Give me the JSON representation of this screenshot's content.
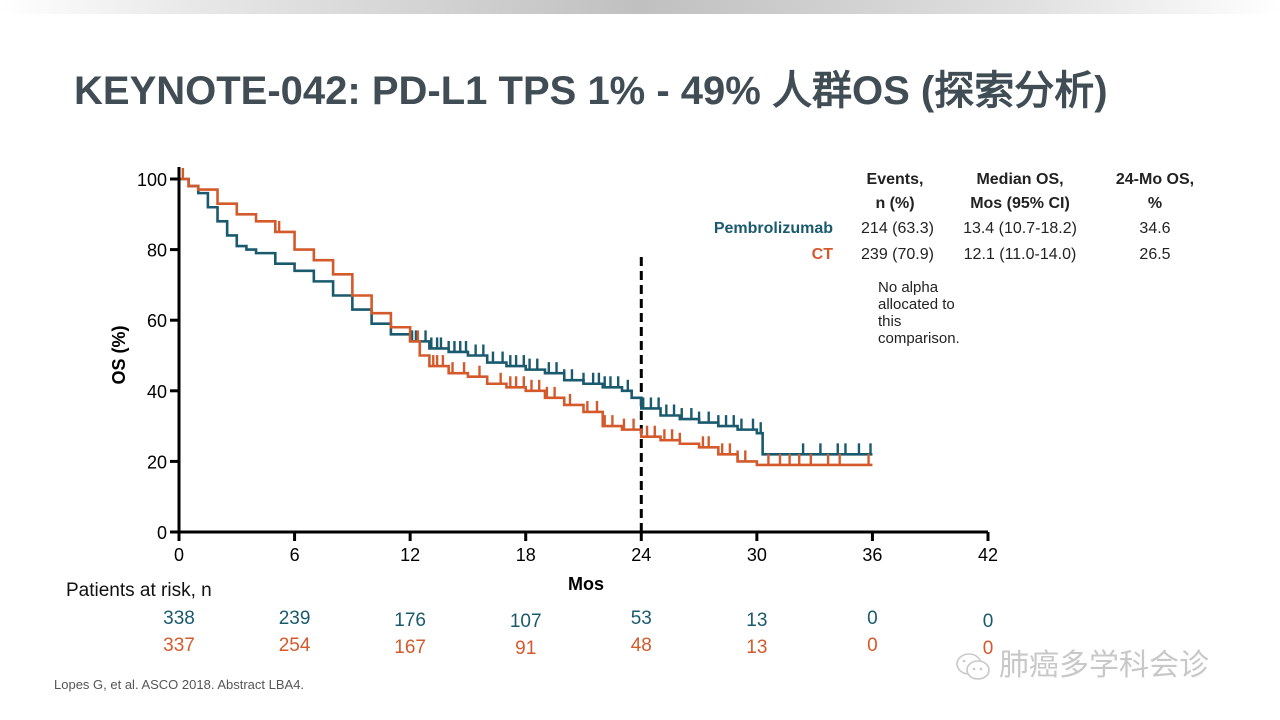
{
  "slide": {
    "title": "KEYNOTE-042: PD-L1 TPS 1% - 49% 人群OS  (探索分析)",
    "footer": "Lopes G, et al. ASCO 2018. Abstract LBA4.",
    "watermark": "肺癌多学科会诊",
    "watermark_icon": "wechat-icon"
  },
  "colors": {
    "pembrolizumab": "#1a5a6e",
    "ct": "#d45a2c",
    "title": "#404d55"
  },
  "summary_table": {
    "headers": [
      [
        "Events,",
        "n (%)"
      ],
      [
        "Median OS,",
        "Mos (95% CI)"
      ],
      [
        "24-Mo OS,",
        "%"
      ]
    ],
    "rows": [
      {
        "arm": "Pembrolizumab",
        "events": "214 (63.3)",
        "median_os": "13.4 (10.7-18.2)",
        "os24": "34.6"
      },
      {
        "arm": "CT",
        "events": "239 (70.9)",
        "median_os": "12.1 (11.0-14.0)",
        "os24": "26.5"
      }
    ],
    "note": "No alpha allocated to this comparison."
  },
  "risk_table": {
    "title": "Patients at risk, n",
    "months": [
      0,
      6,
      12,
      18,
      24,
      30,
      36,
      42
    ],
    "pembrolizumab": [
      "338",
      "239",
      "176",
      "107",
      "53",
      "13",
      "0",
      "0"
    ],
    "ct": [
      "337",
      "254",
      "167",
      "91",
      "48",
      "13",
      "0",
      "0"
    ]
  },
  "chart_data": {
    "type": "line",
    "title": "",
    "xlabel": "Mos",
    "ylabel": "OS (%)",
    "xlim": [
      0,
      42
    ],
    "ylim": [
      0,
      100
    ],
    "xticks": [
      0,
      6,
      12,
      18,
      24,
      30,
      36,
      42
    ],
    "yticks": [
      0,
      20,
      40,
      60,
      80,
      100
    ],
    "grid": false,
    "reference_line": {
      "x": 24,
      "style": "dashed",
      "y_top": 79
    },
    "step": true,
    "series": [
      {
        "name": "Pembrolizumab",
        "x": [
          0,
          0.5,
          1,
          1.5,
          2,
          2.5,
          3,
          3.5,
          4,
          5,
          6,
          7,
          8,
          9,
          10,
          11,
          12,
          13,
          14,
          15,
          16,
          17,
          18,
          19,
          20,
          21,
          22,
          23,
          23.5,
          24,
          25,
          26,
          27,
          28,
          29,
          30,
          30.3,
          33,
          36
        ],
        "y": [
          100,
          98,
          96,
          92,
          88,
          84,
          81,
          80,
          79,
          76,
          74,
          71,
          67,
          63,
          59,
          56,
          54,
          52,
          51,
          50,
          48,
          47,
          46,
          45,
          43,
          42,
          41,
          40,
          38,
          35,
          33,
          32,
          31,
          30,
          29,
          28,
          22,
          22,
          22
        ],
        "censor_x": [
          12.1,
          12.3,
          12.8,
          13.1,
          13.4,
          13.6,
          14,
          14.3,
          14.6,
          14.9,
          15.4,
          15.8,
          16.3,
          16.8,
          17.2,
          17.5,
          17.9,
          18.2,
          18.6,
          19.2,
          19.6,
          20,
          20.4,
          21,
          21.5,
          21.8,
          22.1,
          22.4,
          22.8,
          23.3,
          24.1,
          24.5,
          24.9,
          25.3,
          25.7,
          26.1,
          26.6,
          27,
          27.5,
          28,
          28.4,
          28.8,
          29.2,
          29.8,
          30.2,
          32.4,
          33.3,
          34.2,
          34.6,
          35.3,
          35.9
        ]
      },
      {
        "name": "CT",
        "x": [
          0,
          0.5,
          1,
          2,
          3,
          4,
          5,
          6,
          7,
          8,
          9,
          10,
          11,
          12,
          12.5,
          13,
          14,
          15,
          16,
          17,
          18,
          19,
          20,
          21,
          22,
          23,
          24,
          25,
          26,
          27,
          28,
          29,
          30,
          31,
          36
        ],
        "y": [
          100,
          98,
          97,
          93,
          90,
          88,
          85,
          80,
          77,
          73,
          67,
          62,
          58,
          54,
          50,
          47,
          45,
          44,
          42,
          41,
          40,
          38,
          36,
          34,
          30,
          29,
          27,
          26,
          25,
          24,
          22,
          20,
          19,
          19,
          19
        ],
        "censor_x": [
          0.2,
          5.2,
          12.4,
          13.2,
          13.4,
          13.7,
          14.2,
          14.8,
          15.6,
          16.7,
          17.2,
          17.5,
          17.9,
          18.3,
          18.7,
          19.1,
          19.5,
          20.3,
          21.2,
          21.7,
          22.1,
          22.5,
          23.1,
          23.6,
          24.3,
          24.7,
          25.2,
          25.6,
          26,
          27.2,
          27.5,
          28.2,
          28.6,
          29,
          29.4,
          30.6,
          31.2,
          31.7,
          32.2,
          32.8,
          33.7,
          34.3,
          35.8
        ]
      }
    ],
    "legend": "table top-right"
  }
}
